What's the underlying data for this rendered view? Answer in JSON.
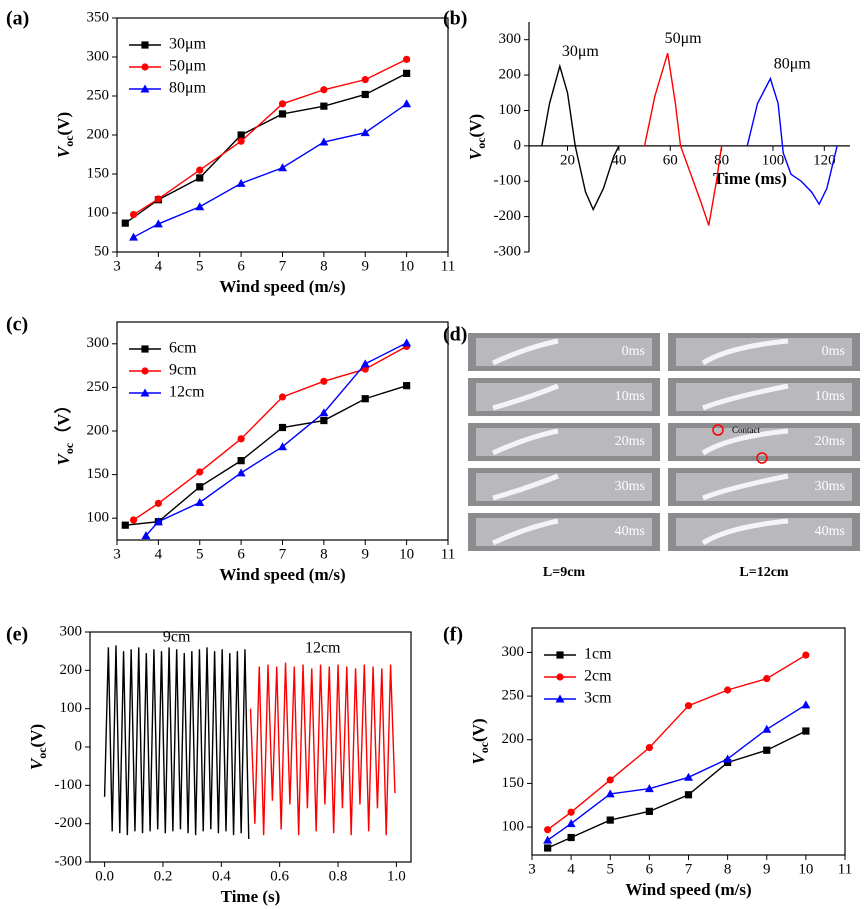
{
  "chart_data": [
    {
      "type": "line",
      "panel": "(a)",
      "xlabel": "Wind speed (m/s)",
      "ylabel": [
        "V",
        "oc",
        "(V)"
      ],
      "xlim": [
        3,
        11
      ],
      "xticks": [
        3,
        4,
        5,
        6,
        7,
        8,
        9,
        10,
        11
      ],
      "ylim": [
        50,
        350
      ],
      "yticks": [
        50,
        100,
        150,
        200,
        250,
        300,
        350
      ],
      "legend": "upper left",
      "series": [
        {
          "name": "30μm",
          "color": "#000000",
          "marker": "square",
          "x": [
            3.2,
            4,
            5,
            6,
            7,
            8,
            9,
            10
          ],
          "values": [
            87,
            117,
            145,
            200,
            227,
            237,
            252,
            279
          ]
        },
        {
          "name": "50μm",
          "color": "#ff0000",
          "marker": "circle",
          "x": [
            3.4,
            4,
            5,
            6,
            7,
            8,
            9,
            10
          ],
          "values": [
            98,
            118,
            155,
            192,
            240,
            258,
            271,
            297
          ]
        },
        {
          "name": "80μm",
          "color": "#0000ff",
          "marker": "triangle",
          "x": [
            3.4,
            4,
            5,
            6,
            7,
            8,
            9,
            10
          ],
          "values": [
            69,
            86,
            108,
            138,
            158,
            191,
            203,
            240
          ]
        }
      ]
    },
    {
      "type": "line",
      "panel": "(b)",
      "xlabel": "Time (ms)",
      "ylabel": [
        "V",
        "oc",
        "(V)"
      ],
      "xlim": [
        5,
        130
      ],
      "xticks": [
        20,
        40,
        60,
        80,
        100,
        120
      ],
      "ylim": [
        -300,
        350
      ],
      "yticks": [
        -300,
        -200,
        -100,
        0,
        100,
        200,
        300
      ],
      "annotations": [
        "30μm",
        "50μm",
        "80μm"
      ],
      "series": [
        {
          "color": "#000000",
          "x": [
            10,
            13,
            17,
            20,
            23,
            27,
            30,
            34,
            38,
            40
          ],
          "values": [
            0,
            120,
            225,
            150,
            0,
            -130,
            -180,
            -120,
            -30,
            0
          ]
        },
        {
          "color": "#ff0000",
          "x": [
            50,
            54,
            59,
            62,
            64,
            68,
            72,
            75,
            78,
            80
          ],
          "values": [
            0,
            140,
            262,
            120,
            0,
            -80,
            -160,
            -225,
            -100,
            0
          ]
        },
        {
          "color": "#0000ff",
          "x": [
            90,
            94,
            99,
            102,
            104,
            107,
            111,
            115,
            118,
            121,
            125
          ],
          "values": [
            0,
            120,
            190,
            120,
            -20,
            -80,
            -100,
            -130,
            -165,
            -120,
            0
          ]
        }
      ]
    },
    {
      "type": "line",
      "panel": "(c)",
      "xlabel": "Wind speed (m/s)",
      "ylabel": [
        "V",
        "oc",
        "（V）"
      ],
      "xlim": [
        3,
        11
      ],
      "xticks": [
        3,
        4,
        5,
        6,
        7,
        8,
        9,
        10,
        11
      ],
      "ylim": [
        75,
        325
      ],
      "yticks": [
        100,
        150,
        200,
        250,
        300
      ],
      "legend": "upper left",
      "series": [
        {
          "name": "6cm",
          "color": "#000000",
          "marker": "square",
          "x": [
            3.2,
            4,
            5,
            6,
            7,
            8,
            9,
            10
          ],
          "values": [
            92,
            96,
            136,
            166,
            204,
            212,
            237,
            252
          ]
        },
        {
          "name": "9cm",
          "color": "#ff0000",
          "marker": "circle",
          "x": [
            3.4,
            4,
            5,
            6,
            7,
            8,
            9,
            10
          ],
          "values": [
            98,
            117,
            153,
            191,
            239,
            257,
            271,
            297
          ]
        },
        {
          "name": "12cm",
          "color": "#0000ff",
          "marker": "triangle",
          "x": [
            3.7,
            4,
            5,
            6,
            7,
            8,
            9,
            10
          ],
          "values": [
            80,
            96,
            118,
            152,
            182,
            221,
            277,
            301
          ]
        }
      ]
    },
    {
      "type": "line",
      "panel": "(e)",
      "xlabel": "Time (s)",
      "ylabel": [
        "V",
        "oc",
        "(V)"
      ],
      "xlim": [
        -0.05,
        1.05
      ],
      "xticks": [
        {
          "value": 0,
          "label": "0.0"
        },
        0.2,
        0.4,
        0.6,
        0.8,
        {
          "value": 1,
          "label": "1.0"
        }
      ],
      "ylim": [
        -300,
        300
      ],
      "yticks": [
        -300,
        -200,
        -100,
        0,
        100,
        200,
        300
      ],
      "annotations": [
        "9cm",
        "12cm"
      ],
      "series": [
        {
          "color": "#000000",
          "x": [
            0,
            0.013,
            0.026,
            0.039,
            0.052,
            0.065,
            0.078,
            0.091,
            0.104,
            0.117,
            0.13,
            0.143,
            0.156,
            0.169,
            0.182,
            0.195,
            0.208,
            0.221,
            0.234,
            0.247,
            0.26,
            0.273,
            0.286,
            0.299,
            0.312,
            0.325,
            0.338,
            0.351,
            0.364,
            0.377,
            0.39,
            0.403,
            0.416,
            0.429,
            0.442,
            0.455,
            0.468,
            0.481,
            0.494
          ],
          "values": [
            -130,
            260,
            -220,
            265,
            -225,
            250,
            -230,
            255,
            -220,
            260,
            -225,
            245,
            -220,
            255,
            -215,
            250,
            -225,
            260,
            -220,
            255,
            -215,
            245,
            -225,
            250,
            -230,
            255,
            -220,
            260,
            -215,
            250,
            -225,
            255,
            -220,
            245,
            -230,
            250,
            -225,
            255,
            -240
          ]
        },
        {
          "color": "#ff0000",
          "x": [
            0.5,
            0.515,
            0.53,
            0.545,
            0.56,
            0.575,
            0.59,
            0.605,
            0.62,
            0.635,
            0.65,
            0.665,
            0.68,
            0.695,
            0.71,
            0.725,
            0.74,
            0.755,
            0.77,
            0.785,
            0.8,
            0.815,
            0.83,
            0.845,
            0.86,
            0.875,
            0.89,
            0.905,
            0.92,
            0.935,
            0.95,
            0.965,
            0.98,
            0.995
          ],
          "values": [
            100,
            -200,
            210,
            -230,
            215,
            -140,
            210,
            -215,
            220,
            -150,
            210,
            -230,
            215,
            -160,
            205,
            -220,
            215,
            -150,
            210,
            -225,
            215,
            -160,
            210,
            -230,
            205,
            -150,
            215,
            -220,
            210,
            -160,
            205,
            -230,
            215,
            -120
          ]
        }
      ]
    },
    {
      "type": "line",
      "panel": "(f)",
      "xlabel": "Wind speed (m/s)",
      "ylabel": [
        "V",
        "oc",
        "(V)"
      ],
      "xlim": [
        3,
        11
      ],
      "xticks": [
        3,
        4,
        5,
        6,
        7,
        8,
        9,
        10,
        11
      ],
      "ylim": [
        68,
        328
      ],
      "yticks": [
        100,
        150,
        200,
        250,
        300
      ],
      "legend": "upper left",
      "series": [
        {
          "name": "1cm",
          "color": "#000000",
          "marker": "square",
          "x": [
            3.4,
            4,
            5,
            6,
            7,
            8,
            9,
            10
          ],
          "values": [
            76,
            88,
            108,
            118,
            137,
            174,
            188,
            210
          ]
        },
        {
          "name": "2cm",
          "color": "#ff0000",
          "marker": "circle",
          "x": [
            3.4,
            4,
            5,
            6,
            7,
            8,
            9,
            10
          ],
          "values": [
            97,
            117,
            154,
            191,
            239,
            257,
            270,
            297
          ]
        },
        {
          "name": "3cm",
          "color": "#0000ff",
          "marker": "triangle",
          "x": [
            3.4,
            4,
            5,
            6,
            7,
            8,
            9,
            10
          ],
          "values": [
            85,
            104,
            138,
            144,
            157,
            178,
            212,
            240
          ]
        }
      ]
    }
  ],
  "panel_d": {
    "panel": "(d)",
    "frames": [
      {
        "left": "0ms",
        "right": "0ms"
      },
      {
        "left": "10ms",
        "right": "10ms"
      },
      {
        "left": "20ms",
        "right": "20ms"
      },
      {
        "left": "30ms",
        "right": "30ms"
      },
      {
        "left": "40ms",
        "right": "40ms"
      }
    ],
    "contact": "Contact",
    "captions": [
      "L=9cm",
      "L=12cm"
    ]
  }
}
